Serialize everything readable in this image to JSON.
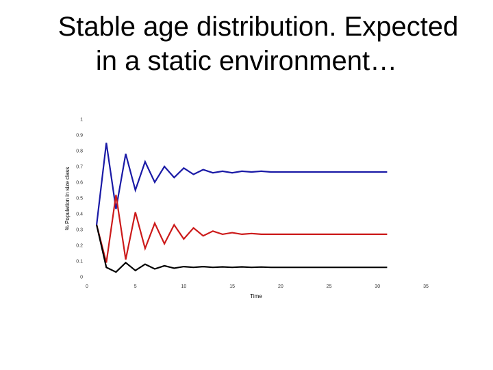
{
  "slide": {
    "title_line1": "Stable age distribution. Expected",
    "title_line2": "in a static environment…"
  },
  "chart_data": {
    "type": "line",
    "xlabel": "Time",
    "ylabel": "% Population in size class",
    "xlim": [
      0,
      35
    ],
    "ylim": [
      0,
      1
    ],
    "x_ticks": [
      "0",
      "5",
      "10",
      "15",
      "20",
      "25",
      "30",
      "35"
    ],
    "y_ticks": [
      "0",
      "0.1",
      "0.2",
      "0.3",
      "0.4",
      "0.5",
      "0.6",
      "0.7",
      "0.8",
      "0.9",
      "1"
    ],
    "grid": false,
    "legend": "none",
    "series": [
      {
        "color": "#1a1aa6",
        "x": [
          1,
          2,
          3,
          4,
          5,
          6,
          7,
          8,
          9,
          10,
          11,
          12,
          13,
          14,
          15,
          16,
          17,
          18,
          19,
          20,
          22,
          25,
          28,
          31
        ],
        "y": [
          0.33,
          0.85,
          0.43,
          0.78,
          0.55,
          0.73,
          0.6,
          0.7,
          0.63,
          0.69,
          0.65,
          0.68,
          0.66,
          0.67,
          0.66,
          0.67,
          0.665,
          0.67,
          0.665,
          0.665,
          0.665,
          0.665,
          0.665,
          0.665
        ]
      },
      {
        "color": "#cc1a1a",
        "x": [
          1,
          2,
          3,
          4,
          5,
          6,
          7,
          8,
          9,
          10,
          11,
          12,
          13,
          14,
          15,
          16,
          17,
          18,
          19,
          20,
          22,
          25,
          28,
          31
        ],
        "y": [
          0.33,
          0.09,
          0.52,
          0.11,
          0.41,
          0.18,
          0.34,
          0.21,
          0.33,
          0.24,
          0.31,
          0.26,
          0.29,
          0.27,
          0.28,
          0.27,
          0.275,
          0.27,
          0.27,
          0.27,
          0.27,
          0.27,
          0.27,
          0.27
        ]
      },
      {
        "color": "#000000",
        "x": [
          1,
          2,
          3,
          4,
          5,
          6,
          7,
          8,
          9,
          10,
          11,
          12,
          13,
          14,
          15,
          16,
          17,
          18,
          19,
          20,
          22,
          25,
          28,
          31
        ],
        "y": [
          0.33,
          0.06,
          0.03,
          0.09,
          0.04,
          0.08,
          0.05,
          0.07,
          0.055,
          0.065,
          0.06,
          0.065,
          0.06,
          0.063,
          0.06,
          0.063,
          0.06,
          0.062,
          0.06,
          0.06,
          0.06,
          0.06,
          0.06,
          0.06
        ]
      }
    ]
  }
}
